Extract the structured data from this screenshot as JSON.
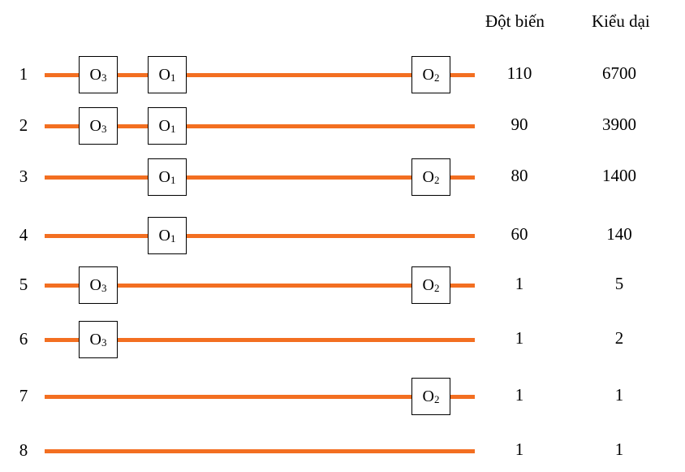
{
  "headers": {
    "mutant": "Đột biến",
    "wild_type": "Kiểu dại"
  },
  "operator_labels": {
    "o1": "O",
    "o1_sub": "1",
    "o2": "O",
    "o2_sub": "2",
    "o3": "O",
    "o3_sub": "3"
  },
  "rows": [
    {
      "index": "1",
      "has_o3": true,
      "has_o1": true,
      "has_o2": true,
      "mutant": "110",
      "wild_type": "6700"
    },
    {
      "index": "2",
      "has_o3": true,
      "has_o1": true,
      "has_o2": false,
      "mutant": "90",
      "wild_type": "3900"
    },
    {
      "index": "3",
      "has_o3": false,
      "has_o1": true,
      "has_o2": true,
      "mutant": "80",
      "wild_type": "1400"
    },
    {
      "index": "4",
      "has_o3": false,
      "has_o1": true,
      "has_o2": false,
      "mutant": "60",
      "wild_type": "140"
    },
    {
      "index": "5",
      "has_o3": true,
      "has_o1": false,
      "has_o2": true,
      "mutant": "1",
      "wild_type": "5"
    },
    {
      "index": "6",
      "has_o3": true,
      "has_o1": false,
      "has_o2": false,
      "mutant": "1",
      "wild_type": "2"
    },
    {
      "index": "7",
      "has_o3": false,
      "has_o1": false,
      "has_o2": true,
      "mutant": "1",
      "wild_type": "1"
    },
    {
      "index": "8",
      "has_o3": false,
      "has_o1": false,
      "has_o2": false,
      "mutant": "1",
      "wild_type": "1"
    }
  ],
  "colors": {
    "dna_line": "#f36f21",
    "box_border": "#000000"
  }
}
